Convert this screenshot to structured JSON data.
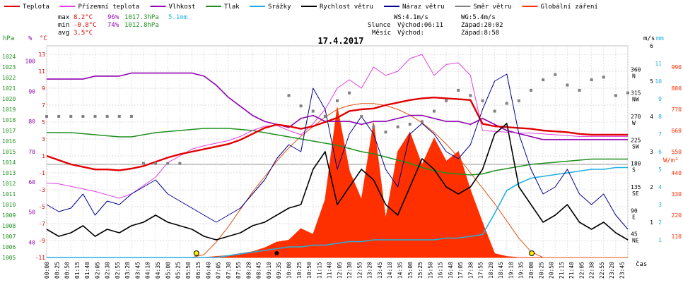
{
  "chart_data": {
    "type": "line",
    "title": "17.4.2017",
    "xlabel": "čas",
    "legend": [
      {
        "name": "Teplota",
        "color": "#e00000"
      },
      {
        "name": "Přízemní teplota",
        "color": "#e040e0"
      },
      {
        "name": "Vlhkost",
        "color": "#9000b0"
      },
      {
        "name": "Tlak",
        "color": "#209020"
      },
      {
        "name": "Srážky",
        "color": "#20b0e0"
      },
      {
        "name": "Rychlost větru",
        "color": "#000000"
      },
      {
        "name": "Náraz větru",
        "color": "#000090"
      },
      {
        "name": "Směr větru",
        "color": "#808080"
      },
      {
        "name": "Globální záření",
        "color": "#ff3000"
      }
    ],
    "stats": {
      "max_label": "max",
      "max_temp": "8.2°C",
      "max_hum": "96%",
      "max_press": "1017.3hPa",
      "max_rain": "5.1mm",
      "min_label": "min",
      "min_temp": "-0.8°C",
      "min_hum": "74%",
      "min_press": "1012.8hPa",
      "avg_label": "avg",
      "avg_temp": "3.5°C",
      "ws": "WS:4.1m/s",
      "wg": "WG:5.4m/s",
      "sun_label": "Slunce",
      "sunrise": "Východ:06:11",
      "sunset": "Západ:20:02",
      "moon_label": "Měsíc",
      "moonrise": "Východ:",
      "moonset": "Západ:8:58"
    },
    "axes": {
      "hpa_title": "hPa",
      "pct_title": "%",
      "c_title": "°C",
      "hpa_ticks": [
        "1024",
        "1023",
        "1022",
        "1021",
        "1020",
        "1019",
        "1018",
        "1017",
        "1016",
        "1015",
        "1014",
        "1013",
        "1012",
        "1011",
        "1010",
        "1009",
        "1008",
        "1007",
        "1006",
        "1005"
      ],
      "pct_ticks": [
        "100",
        "90",
        "80",
        "70",
        "60",
        "50",
        "40"
      ],
      "c_ticks": [
        "13",
        "11",
        "9",
        "7",
        "5",
        "3",
        "1",
        "-1",
        "-3",
        "-5",
        "-7",
        "-9",
        "-11"
      ],
      "dir_title": "m/s",
      "mm_title": "mm",
      "dir_ticks": [
        "360 N",
        "315 NW",
        "270 W",
        "225 SW",
        "180 S",
        "135 SE",
        "90 E",
        "45 NE"
      ],
      "ms_ticks": [
        "6",
        "5",
        "4",
        "3",
        "2",
        "1"
      ],
      "mm_ticks": [
        "11",
        "10",
        "9",
        "8",
        "7",
        "6",
        "5",
        "4",
        "3",
        "2",
        "1"
      ],
      "wm_title": "W/m²",
      "wm_ticks": [
        "990",
        "880",
        "770",
        "660",
        "550",
        "440",
        "330",
        "220",
        "110"
      ]
    },
    "x_ticks": [
      "00:00",
      "00:25",
      "00:50",
      "01:15",
      "01:40",
      "02:05",
      "02:30",
      "02:55",
      "03:20",
      "03:45",
      "04:10",
      "04:35",
      "05:00",
      "05:25",
      "05:50",
      "06:15",
      "06:40",
      "07:05",
      "07:30",
      "07:55",
      "08:20",
      "08:45",
      "09:10",
      "09:35",
      "10:00",
      "10:25",
      "10:50",
      "11:15",
      "11:40",
      "12:05",
      "12:30",
      "12:55",
      "13:20",
      "13:45",
      "14:10",
      "14:35",
      "15:00",
      "15:25",
      "15:50",
      "16:15",
      "16:40",
      "17:05",
      "17:30",
      "17:55",
      "18:20",
      "18:45",
      "19:10",
      "19:35",
      "20:00",
      "20:25",
      "20:50",
      "21:15",
      "21:40",
      "22:05",
      "22:30",
      "22:55",
      "23:20",
      "23:45"
    ],
    "x_hours": [
      0,
      0.5,
      1,
      1.5,
      2,
      2.5,
      3,
      3.5,
      4,
      4.5,
      5,
      5.5,
      6,
      6.5,
      7,
      7.5,
      8,
      8.5,
      9,
      9.5,
      10,
      10.5,
      11,
      11.5,
      12,
      12.5,
      13,
      13.5,
      14,
      14.5,
      15,
      15.5,
      16,
      16.5,
      17,
      17.5,
      18,
      18.5,
      19,
      19.5,
      20,
      20.5,
      21,
      21.5,
      22,
      22.5,
      23,
      23.5,
      24
    ],
    "temperature": [
      1,
      0.5,
      0,
      -0.3,
      -0.6,
      -0.6,
      -0.7,
      -0.5,
      -0.2,
      0.3,
      0.8,
      1.2,
      1.5,
      1.8,
      2.1,
      2.4,
      2.9,
      3.6,
      4.3,
      4.7,
      4.5,
      4.2,
      4.5,
      5.0,
      5.5,
      6.3,
      6.5,
      6.6,
      7.0,
      7.3,
      7.6,
      7.8,
      7.9,
      7.8,
      7.7,
      7.6,
      4.8,
      4.5,
      4.4,
      4.3,
      4.2,
      4.0,
      3.9,
      3.8,
      3.6,
      3.5,
      3.5,
      3.5,
      3.5
    ],
    "ground_temperature": [
      -2.2,
      -2.3,
      -2.6,
      -2.9,
      -3.2,
      -3.6,
      -4.0,
      -3.5,
      -2.5,
      -1.5,
      0.2,
      1.0,
      1.8,
      2.2,
      2.5,
      2.8,
      3.3,
      4.0,
      4.5,
      4.6,
      4.0,
      3.5,
      4.8,
      6.5,
      9.0,
      10.0,
      9.0,
      11.5,
      10.5,
      11.0,
      12.5,
      13.0,
      10.5,
      11.8,
      12.0,
      10.5,
      4.0,
      3.9,
      3.8,
      3.7,
      3.7,
      3.6,
      3.5,
      3.4,
      3.3,
      3.3,
      3.3,
      3.3,
      3.3
    ],
    "humidity": [
      94,
      94,
      94,
      94,
      95,
      95,
      95,
      96,
      96,
      96,
      96,
      96,
      96,
      95,
      92,
      88,
      85,
      82,
      80,
      79,
      78,
      81,
      82,
      80,
      80,
      80,
      79,
      80,
      80,
      81,
      82,
      82,
      81,
      80,
      80,
      79,
      81,
      79,
      77,
      76,
      75,
      74,
      74,
      74,
      74,
      74,
      74,
      74,
      74
    ],
    "pressure_hpa": [
      1016.8,
      1016.8,
      1016.8,
      1016.7,
      1016.6,
      1016.5,
      1016.4,
      1016.4,
      1016.6,
      1016.8,
      1016.9,
      1017.0,
      1017.1,
      1017.2,
      1017.2,
      1017.2,
      1017.1,
      1017.0,
      1016.8,
      1016.6,
      1016.4,
      1016.2,
      1016.0,
      1015.8,
      1015.6,
      1015.3,
      1015.0,
      1014.8,
      1014.5,
      1014.2,
      1013.9,
      1013.5,
      1013.2,
      1013.0,
      1012.9,
      1012.8,
      1012.9,
      1013.2,
      1013.4,
      1013.6,
      1013.8,
      1013.9,
      1014.0,
      1014.1,
      1014.2,
      1014.3,
      1014.3,
      1014.3,
      1014.3
    ],
    "rain_mm": [
      0,
      0,
      0,
      0,
      0,
      0,
      0,
      0,
      0,
      0,
      0,
      0,
      0,
      0,
      0,
      0.1,
      0.2,
      0.3,
      0.4,
      0.5,
      0.6,
      0.6,
      0.7,
      0.7,
      0.8,
      0.9,
      0.9,
      1.0,
      1.0,
      1.0,
      1.0,
      1.0,
      1.0,
      1.1,
      1.1,
      1.2,
      1.3,
      2.5,
      3.8,
      4.2,
      4.5,
      4.6,
      4.7,
      4.8,
      4.9,
      5.0,
      5.0,
      5.1,
      5.1
    ],
    "wind_speed_ms": [
      0.8,
      0.6,
      0.7,
      0.9,
      0.6,
      0.8,
      0.7,
      0.9,
      1.0,
      1.2,
      1.0,
      0.9,
      0.8,
      0.6,
      0.5,
      0.6,
      0.7,
      0.9,
      1.0,
      1.2,
      1.4,
      1.5,
      2.5,
      3.0,
      1.5,
      2.0,
      2.5,
      2.2,
      1.5,
      1.2,
      2.0,
      2.8,
      2.5,
      2.0,
      1.8,
      2.0,
      2.5,
      3.5,
      3.8,
      2.0,
      1.5,
      1.0,
      1.2,
      1.5,
      1.0,
      0.8,
      1.0,
      0.7,
      0.5
    ],
    "wind_gust_ms": [
      1.5,
      1.3,
      1.4,
      1.8,
      1.2,
      1.6,
      1.5,
      1.8,
      2.0,
      2.2,
      1.8,
      1.6,
      1.4,
      1.2,
      1.0,
      1.2,
      1.4,
      1.8,
      2.2,
      2.8,
      3.2,
      3.0,
      4.8,
      4.2,
      2.5,
      3.5,
      4.0,
      3.5,
      2.5,
      2.0,
      3.5,
      3.8,
      3.5,
      3.0,
      2.8,
      3.2,
      4.2,
      5.0,
      5.2,
      3.5,
      2.5,
      1.8,
      2.0,
      2.5,
      1.8,
      1.5,
      1.8,
      1.2,
      0.8
    ],
    "wind_direction_deg": [
      270,
      270,
      270,
      270,
      270,
      270,
      270,
      270,
      180,
      180,
      180,
      180,
      null,
      null,
      null,
      null,
      null,
      null,
      null,
      null,
      310,
      290,
      280,
      270,
      300,
      315,
      270,
      250,
      240,
      250,
      255,
      260,
      280,
      300,
      320,
      310,
      300,
      280,
      295,
      300,
      320,
      340,
      350,
      330,
      320,
      340,
      345,
      310,
      315
    ],
    "global_radiation_wm2": [
      0,
      0,
      0,
      0,
      0,
      0,
      0,
      0,
      0,
      0,
      0,
      0,
      0,
      0,
      5,
      10,
      20,
      30,
      50,
      80,
      90,
      150,
      120,
      300,
      780,
      450,
      300,
      700,
      200,
      550,
      650,
      480,
      620,
      500,
      550,
      350,
      180,
      20,
      5,
      0,
      0,
      0,
      0,
      0,
      0,
      0,
      0,
      0,
      0
    ],
    "theoretical_radiation_wm2": [
      0,
      0,
      0,
      0,
      0,
      0,
      0,
      0,
      0,
      0,
      0,
      0,
      0,
      15,
      80,
      160,
      250,
      340,
      420,
      500,
      570,
      630,
      680,
      730,
      770,
      790,
      800,
      800,
      790,
      770,
      740,
      700,
      650,
      590,
      520,
      440,
      360,
      280,
      190,
      100,
      30,
      0,
      0,
      0,
      0,
      0,
      0,
      0,
      0
    ],
    "ylim_c": [
      -11,
      14
    ],
    "ylim_hpa": [
      1005,
      1025
    ],
    "ylim_pct": [
      35,
      105
    ],
    "ylim_ms": [
      0,
      6
    ],
    "ylim_wm2": [
      0,
      1100
    ]
  }
}
